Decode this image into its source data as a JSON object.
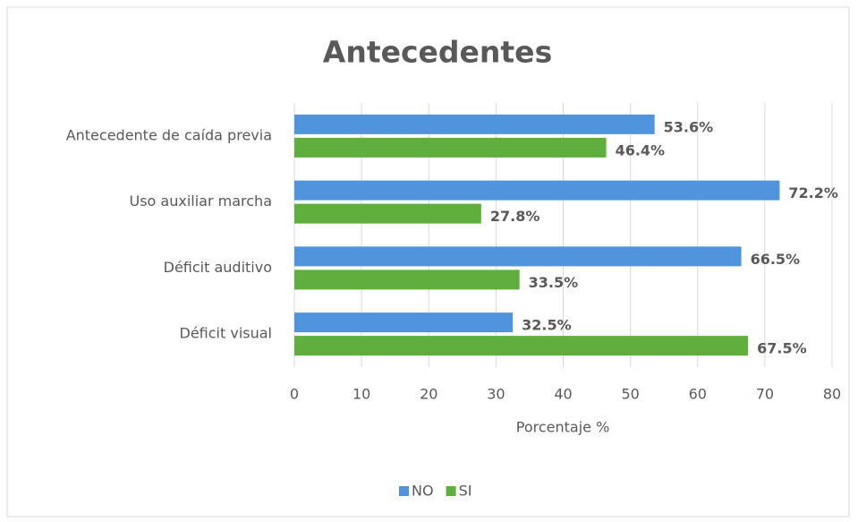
{
  "chart_data": {
    "type": "bar",
    "orientation": "horizontal",
    "title": "Antecedentes",
    "x_label": "Porcentaje %",
    "categories": [
      "Antecedente de caída previa",
      "Uso auxiliar marcha",
      "Déficit auditivo",
      "Déficit visual"
    ],
    "series": [
      {
        "name": "NO",
        "color": "#4f94dc",
        "values": [
          53.6,
          72.2,
          66.5,
          32.5
        ],
        "value_labels": [
          "53.6%",
          "72.2%",
          "66.5%",
          "32.5%"
        ]
      },
      {
        "name": "SI",
        "color": "#5fae3e",
        "values": [
          46.4,
          27.8,
          33.5,
          67.5
        ],
        "value_labels": [
          "46.4%",
          "27.8%",
          "33.5%",
          "67.5%"
        ]
      }
    ],
    "xlim": [
      0,
      80
    ],
    "xticks": [
      0,
      10,
      20,
      30,
      40,
      50,
      60,
      70,
      80
    ],
    "grid": true,
    "legend": "bottom"
  }
}
